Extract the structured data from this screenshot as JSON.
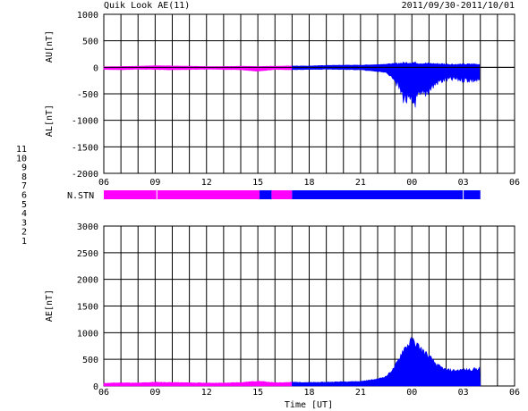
{
  "header": {
    "title": "Quik Look AE(11)",
    "date_range": "2011/09/30-2011/10/01"
  },
  "colors": {
    "negative_stations": "#ff00ff",
    "positive_stations": "#0000ff",
    "grid": "#000000"
  },
  "x_ticks": [
    "06",
    "09",
    "12",
    "15",
    "18",
    "21",
    "00",
    "03",
    "06"
  ],
  "chart_data": [
    {
      "id": "au_al",
      "type": "area",
      "title": "",
      "ylabel_upper": "AU[nT]",
      "ylabel_lower": "AL[nT]",
      "xlabel": "",
      "x_unit": "hours from 06 UT",
      "xlim": [
        0,
        24
      ],
      "ylim": [
        -2000,
        1000
      ],
      "y_ticks": [
        1000,
        500,
        0,
        -500,
        -1000,
        -1500,
        -2000
      ],
      "grid": true,
      "series": [
        {
          "name": "AU",
          "x": [
            0,
            1,
            2,
            3,
            4,
            5,
            6,
            7,
            8,
            9,
            10,
            11,
            12,
            13,
            14,
            15,
            16,
            17,
            18,
            18.5,
            19,
            19.5,
            20,
            20.5,
            21,
            21.5,
            22
          ],
          "values": [
            10,
            15,
            20,
            30,
            25,
            20,
            15,
            15,
            20,
            15,
            20,
            25,
            25,
            35,
            40,
            40,
            50,
            70,
            90,
            75,
            70,
            65,
            60,
            55,
            55,
            60,
            55
          ]
        },
        {
          "name": "AL",
          "x": [
            0,
            1,
            2,
            3,
            4,
            5,
            6,
            7,
            8,
            9,
            10,
            11,
            12,
            13,
            14,
            15,
            16,
            16.5,
            17,
            17.5,
            18,
            18.2,
            18.5,
            19,
            19.5,
            20,
            20.5,
            21,
            21.5,
            22
          ],
          "values": [
            -40,
            -45,
            -35,
            -40,
            -45,
            -40,
            -35,
            -40,
            -45,
            -70,
            -40,
            -45,
            -40,
            -35,
            -40,
            -45,
            -80,
            -100,
            -230,
            -550,
            -700,
            -620,
            -560,
            -420,
            -280,
            -230,
            -220,
            -230,
            -240,
            -250
          ]
        }
      ]
    },
    {
      "id": "stations",
      "type": "bar",
      "label": "N.STN",
      "ylim": [
        1,
        11
      ],
      "y_ticks": [
        "1",
        "2",
        "3",
        "4",
        "5",
        "6",
        "7",
        "8",
        "9",
        "10",
        "11"
      ],
      "y_tick_colors": [
        "#0000ff",
        "#ff00ff",
        "#00aaaa",
        "#aaaaaa",
        "#aaaaaa",
        "#ff0000",
        "#00cc00",
        "#dddd00",
        "#0000ff",
        "#ff00ff",
        "#00ffff"
      ],
      "segments": [
        {
          "start": 0,
          "end": 3.1,
          "stations": 10
        },
        {
          "start": 3.1,
          "end": 9.1,
          "stations": 10
        },
        {
          "start": 9.1,
          "end": 9.8,
          "stations": 9
        },
        {
          "start": 9.8,
          "end": 11.0,
          "stations": 10
        },
        {
          "start": 11.0,
          "end": 21.0,
          "stations": 9
        },
        {
          "start": 21.0,
          "end": 22.0,
          "stations": 9
        }
      ]
    },
    {
      "id": "ae",
      "type": "area",
      "title": "",
      "ylabel": "AE[nT]",
      "xlabel": "Time [UT]",
      "xlim": [
        0,
        24
      ],
      "ylim": [
        0,
        3000
      ],
      "y_ticks": [
        3000,
        2500,
        2000,
        1500,
        1000,
        500,
        0
      ],
      "grid": true,
      "series": [
        {
          "name": "AE",
          "x": [
            0,
            1,
            2,
            3,
            4,
            5,
            6,
            7,
            8,
            9,
            10,
            11,
            12,
            13,
            14,
            15,
            16,
            16.5,
            17,
            17.5,
            18,
            18.2,
            18.5,
            19,
            19.5,
            20,
            20.5,
            21,
            21.5,
            22
          ],
          "values": [
            50,
            60,
            55,
            70,
            65,
            60,
            55,
            55,
            65,
            90,
            60,
            70,
            65,
            70,
            80,
            85,
            130,
            180,
            350,
            680,
            850,
            800,
            700,
            550,
            380,
            300,
            290,
            300,
            310,
            330
          ]
        }
      ]
    }
  ]
}
